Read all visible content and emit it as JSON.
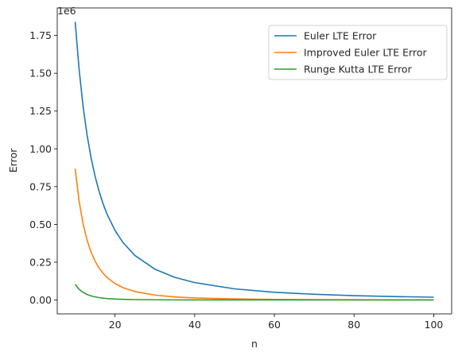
{
  "chart_data": {
    "type": "line",
    "title": "",
    "xlabel": "n",
    "ylabel": "Error",
    "y_multiplier_label": "1e6",
    "xlim": [
      5.5,
      104.5
    ],
    "ylim": [
      -0.092,
      1.932
    ],
    "x_ticks": [
      20,
      40,
      60,
      80,
      100
    ],
    "x_tick_labels": [
      "20",
      "40",
      "60",
      "80",
      "100"
    ],
    "y_ticks": [
      0.0,
      0.25,
      0.5,
      0.75,
      1.0,
      1.25,
      1.5,
      1.75
    ],
    "y_tick_labels": [
      "0.00",
      "0.25",
      "0.50",
      "0.75",
      "1.00",
      "1.25",
      "1.50",
      "1.75"
    ],
    "grid": false,
    "legend_position": "top-right",
    "x": [
      10,
      11,
      12,
      13,
      14,
      15,
      16,
      17,
      18,
      20,
      22,
      25,
      30,
      35,
      40,
      50,
      60,
      70,
      80,
      90,
      100
    ],
    "series": [
      {
        "name": "Euler LTE Error",
        "color": "#1f77b4",
        "values": [
          1.84,
          1.521,
          1.278,
          1.089,
          0.939,
          0.818,
          0.719,
          0.637,
          0.568,
          0.46,
          0.38,
          0.294,
          0.204,
          0.15,
          0.115,
          0.0736,
          0.0511,
          0.0376,
          0.0288,
          0.0227,
          0.0184
        ]
      },
      {
        "name": "Improved Euler LTE Error",
        "color": "#ff7f0e",
        "values": [
          0.868,
          0.652,
          0.502,
          0.395,
          0.316,
          0.257,
          0.212,
          0.177,
          0.149,
          0.1085,
          0.0815,
          0.0556,
          0.0321,
          0.0202,
          0.0136,
          0.0069,
          0.004,
          0.0025,
          0.0017,
          0.0012,
          0.0009
        ]
      },
      {
        "name": "Runge Kutta LTE Error",
        "color": "#2ca02c",
        "values": [
          0.103,
          0.0703,
          0.0497,
          0.0361,
          0.0268,
          0.0203,
          0.0157,
          0.0123,
          0.0098,
          0.0064,
          0.0044,
          0.0026,
          0.0013,
          0.0007,
          0.0004,
          0.0002,
          0.0001,
          0.0,
          0.0,
          0.0,
          0.0
        ]
      }
    ]
  }
}
